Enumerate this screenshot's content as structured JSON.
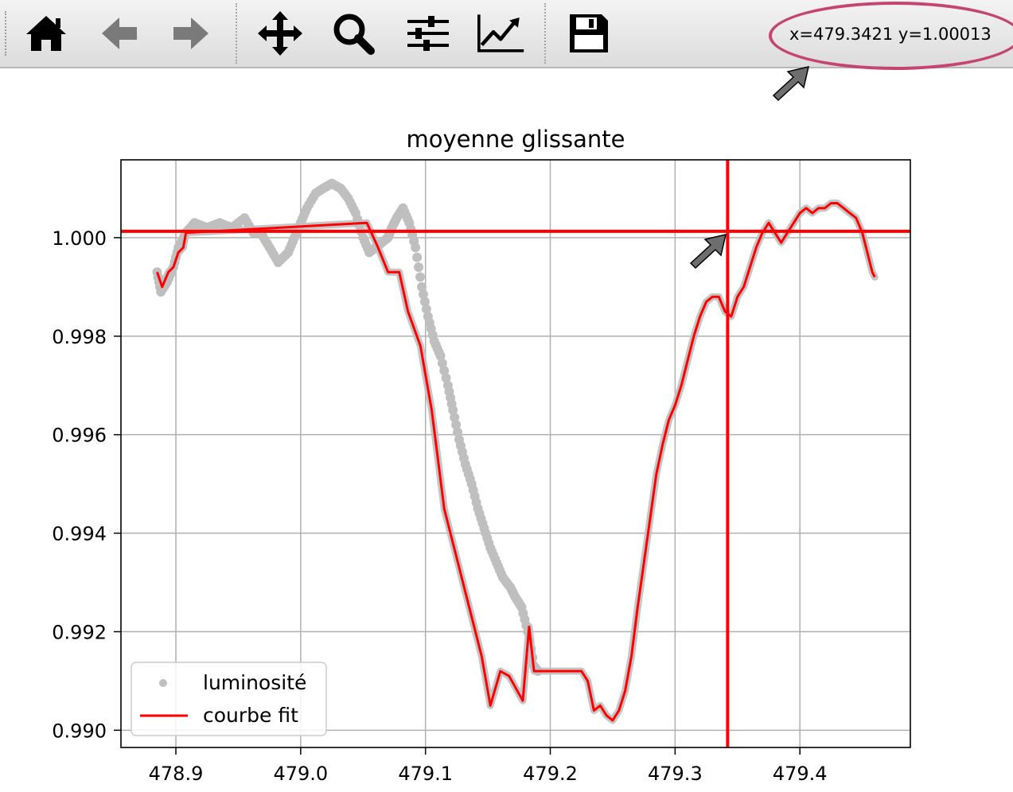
{
  "toolbar": {
    "buttons": [
      {
        "name": "home-button",
        "icon": "home-icon",
        "enabled": true
      },
      {
        "name": "back-button",
        "icon": "arrow-left-icon",
        "enabled": false
      },
      {
        "name": "forward-button",
        "icon": "arrow-right-icon",
        "enabled": false
      },
      {
        "name": "pan-button",
        "icon": "move-icon",
        "enabled": true
      },
      {
        "name": "zoom-button",
        "icon": "magnifier-icon",
        "enabled": true
      },
      {
        "name": "configure-subplots-button",
        "icon": "sliders-icon",
        "enabled": true
      },
      {
        "name": "edit-axes-button",
        "icon": "line-chart-icon",
        "enabled": true
      },
      {
        "name": "save-button",
        "icon": "floppy-disk-icon",
        "enabled": true
      }
    ],
    "coordinates": "x=479.3421 y=1.00013"
  },
  "annotation": {
    "color": "#c4466f",
    "arrow_color": "#6e6e6e"
  },
  "chart_data": {
    "type": "line",
    "title": "moyenne glissante",
    "xlabel": "",
    "ylabel": "",
    "xlim": [
      478.856,
      479.4885
    ],
    "ylim": [
      0.98965,
      1.00158
    ],
    "xticks": [
      478.9,
      479.0,
      479.1,
      479.2,
      479.3,
      479.4
    ],
    "xtick_labels": [
      "478.9",
      "479.0",
      "479.1",
      "479.2",
      "479.3",
      "479.4"
    ],
    "yticks": [
      0.99,
      0.992,
      0.994,
      0.996,
      0.998,
      1.0
    ],
    "ytick_labels": [
      "0.990",
      "0.992",
      "0.994",
      "0.996",
      "0.998",
      "1.000"
    ],
    "grid": true,
    "legend": {
      "position": "lower-left",
      "entries": [
        "luminosité",
        "courbe fit"
      ]
    },
    "series": [
      {
        "name": "luminosité",
        "kind": "scatter",
        "color": "#bfbfbf",
        "points": [
          [
            478.885,
            0.9993
          ],
          [
            478.888,
            0.9989
          ],
          [
            478.893,
            0.9991
          ],
          [
            478.898,
            0.9994
          ],
          [
            478.902,
            0.9998
          ],
          [
            478.908,
            1.0001
          ],
          [
            478.915,
            1.0003
          ],
          [
            478.925,
            1.0002
          ],
          [
            478.935,
            1.0003
          ],
          [
            478.945,
            1.0002
          ],
          [
            478.955,
            1.0004
          ],
          [
            478.962,
            1.0001
          ],
          [
            478.968,
            1.0001
          ],
          [
            478.975,
            0.9998
          ],
          [
            478.982,
            0.9995
          ],
          [
            478.99,
            0.9997
          ],
          [
            478.995,
            1.0
          ],
          [
            479.0,
            1.0003
          ],
          [
            479.005,
            1.0006
          ],
          [
            479.012,
            1.0009
          ],
          [
            479.018,
            1.001
          ],
          [
            479.025,
            1.0011
          ],
          [
            479.032,
            1.001
          ],
          [
            479.038,
            1.0008
          ],
          [
            479.044,
            1.0005
          ],
          [
            479.05,
            1.0
          ],
          [
            479.055,
            0.9997
          ],
          [
            479.06,
            0.9998
          ],
          [
            479.065,
            0.9999
          ],
          [
            479.07,
            1.0
          ],
          [
            479.073,
            1.0002
          ],
          [
            479.077,
            1.0004
          ],
          [
            479.082,
            1.0006
          ],
          [
            479.087,
            1.0003
          ],
          [
            479.092,
            0.9998
          ],
          [
            479.097,
            0.999
          ],
          [
            479.102,
            0.9984
          ],
          [
            479.107,
            0.9979
          ],
          [
            479.112,
            0.9976
          ],
          [
            479.118,
            0.997
          ],
          [
            479.122,
            0.9965
          ],
          [
            479.127,
            0.9959
          ],
          [
            479.132,
            0.9954
          ],
          [
            479.137,
            0.995
          ],
          [
            479.142,
            0.9945
          ],
          [
            479.147,
            0.9941
          ],
          [
            479.152,
            0.9937
          ],
          [
            479.157,
            0.9934
          ],
          [
            479.162,
            0.9931
          ],
          [
            479.168,
            0.9929
          ],
          [
            479.172,
            0.9927
          ],
          [
            479.177,
            0.9925
          ],
          [
            479.182,
            0.992
          ],
          [
            479.187,
            0.9913
          ],
          [
            479.19,
            0.9912
          ]
        ]
      },
      {
        "name": "courbe fit",
        "kind": "line",
        "color": "#ff0000",
        "points": [
          [
            478.885,
            0.9993
          ],
          [
            478.889,
            0.999
          ],
          [
            478.894,
            0.9993
          ],
          [
            478.898,
            0.9994
          ],
          [
            478.902,
            0.9997
          ],
          [
            478.906,
            0.9998
          ],
          [
            478.908,
            1.0001
          ],
          [
            479.053,
            1.0003
          ],
          [
            479.062,
            0.9998
          ],
          [
            479.07,
            0.9993
          ],
          [
            479.079,
            0.9993
          ],
          [
            479.086,
            0.9985
          ],
          [
            479.096,
            0.9978
          ],
          [
            479.105,
            0.9965
          ],
          [
            479.115,
            0.9945
          ],
          [
            479.125,
            0.9935
          ],
          [
            479.135,
            0.9925
          ],
          [
            479.145,
            0.9915
          ],
          [
            479.152,
            0.9905
          ],
          [
            479.16,
            0.9912
          ],
          [
            479.167,
            0.9911
          ],
          [
            479.178,
            0.9906
          ],
          [
            479.183,
            0.9921
          ],
          [
            479.187,
            0.9912
          ],
          [
            479.205,
            0.9912
          ],
          [
            479.225,
            0.9912
          ],
          [
            479.23,
            0.991
          ],
          [
            479.235,
            0.9904
          ],
          [
            479.24,
            0.9905
          ],
          [
            479.245,
            0.9903
          ],
          [
            479.25,
            0.9902
          ],
          [
            479.255,
            0.9904
          ],
          [
            479.26,
            0.9908
          ],
          [
            479.265,
            0.9915
          ],
          [
            479.27,
            0.9925
          ],
          [
            479.275,
            0.9934
          ],
          [
            479.28,
            0.9943
          ],
          [
            479.285,
            0.9952
          ],
          [
            479.29,
            0.9958
          ],
          [
            479.295,
            0.9963
          ],
          [
            479.3,
            0.9966
          ],
          [
            479.305,
            0.997
          ],
          [
            479.31,
            0.9975
          ],
          [
            479.315,
            0.998
          ],
          [
            479.32,
            0.9984
          ],
          [
            479.325,
            0.9987
          ],
          [
            479.33,
            0.9988
          ],
          [
            479.335,
            0.9988
          ],
          [
            479.34,
            0.9985
          ],
          [
            479.345,
            0.9984
          ],
          [
            479.35,
            0.9988
          ],
          [
            479.355,
            0.999
          ],
          [
            479.36,
            0.9994
          ],
          [
            479.365,
            0.9998
          ],
          [
            479.37,
            1.0001
          ],
          [
            479.375,
            1.0003
          ],
          [
            479.38,
            1.0001
          ],
          [
            479.385,
            0.9999
          ],
          [
            479.39,
            1.0001
          ],
          [
            479.395,
            1.0003
          ],
          [
            479.4,
            1.0005
          ],
          [
            479.405,
            1.0006
          ],
          [
            479.41,
            1.0005
          ],
          [
            479.415,
            1.0006
          ],
          [
            479.42,
            1.0006
          ],
          [
            479.425,
            1.0007
          ],
          [
            479.43,
            1.0007
          ],
          [
            479.435,
            1.0006
          ],
          [
            479.44,
            1.0005
          ],
          [
            479.445,
            1.0004
          ],
          [
            479.45,
            1.0001
          ],
          [
            479.452,
            0.9999
          ],
          [
            479.455,
            0.9996
          ],
          [
            479.458,
            0.9993
          ],
          [
            479.46,
            0.9992
          ]
        ]
      },
      {
        "name": "",
        "kind": "hline",
        "color": "#ff0000",
        "y": 1.00013
      },
      {
        "name": "",
        "kind": "vline",
        "color": "#ff0000",
        "x": 479.3421
      }
    ]
  }
}
